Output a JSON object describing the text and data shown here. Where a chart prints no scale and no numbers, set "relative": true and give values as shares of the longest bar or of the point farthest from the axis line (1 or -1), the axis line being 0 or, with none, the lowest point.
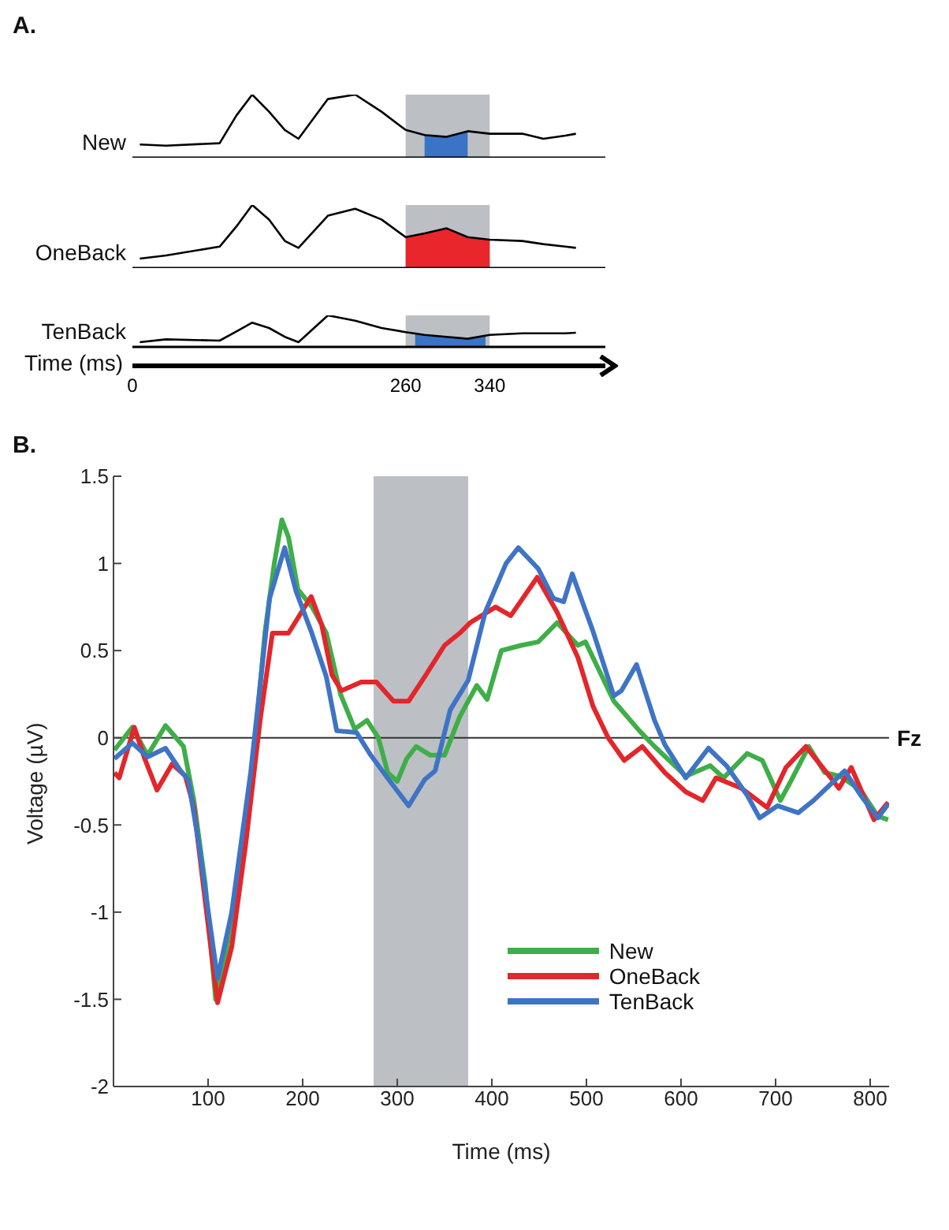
{
  "chart_data": [
    {
      "type": "line",
      "title": "A.",
      "relative": true,
      "marker": "none",
      "tick_labels": false,
      "xlim": [
        0,
        450
      ],
      "x": [
        7,
        32,
        83,
        99,
        114,
        130,
        145,
        158,
        186,
        212,
        237,
        260,
        278,
        299,
        319,
        340,
        371,
        391,
        412,
        422
      ],
      "series": [
        {
          "name": "New",
          "color": "#000000",
          "values": [
            0.21,
            0.19,
            0.23,
            0.67,
            1,
            0.73,
            0.44,
            0.3,
            0.93,
            1,
            0.73,
            0.44,
            0.36,
            0.33,
            0.42,
            0.38,
            0.38,
            0.3,
            0.35,
            0.38
          ]
        },
        {
          "type": "area",
          "color": "#3b73c6",
          "x": [
            278,
            299,
            319
          ],
          "values": [
            0.36,
            0.33,
            0.42
          ]
        }
      ],
      "bands": [
        {
          "axis": "x",
          "from": 260,
          "to": 340,
          "color": "#bcc0c4"
        }
      ]
    },
    {
      "type": "line",
      "relative": true,
      "marker": "none",
      "tick_labels": false,
      "xlim": [
        0,
        450
      ],
      "x": [
        7,
        32,
        83,
        99,
        114,
        130,
        145,
        158,
        186,
        212,
        237,
        260,
        278,
        299,
        319,
        340,
        371,
        391,
        412,
        422
      ],
      "series": [
        {
          "name": "OneBack",
          "color": "#000000",
          "values": [
            0.15,
            0.2,
            0.34,
            0.66,
            1,
            0.77,
            0.43,
            0.32,
            0.83,
            0.94,
            0.77,
            0.49,
            0.55,
            0.63,
            0.49,
            0.45,
            0.43,
            0.38,
            0.34,
            0.32
          ]
        },
        {
          "type": "area",
          "color": "#e8262b",
          "x": [
            260,
            278,
            299,
            319,
            340
          ],
          "values": [
            0.49,
            0.55,
            0.63,
            0.49,
            0.45
          ]
        }
      ],
      "bands": [
        {
          "axis": "x",
          "from": 260,
          "to": 340,
          "color": "#bcc0c4"
        }
      ]
    },
    {
      "type": "line",
      "relative": true,
      "marker": "none",
      "tick_labels": "x",
      "xlabel": "Time (ms)",
      "xlim": [
        0,
        450
      ],
      "xticks": [
        0,
        260,
        340
      ],
      "x": [
        7,
        32,
        83,
        99,
        114,
        130,
        145,
        158,
        186,
        212,
        237,
        260,
        278,
        299,
        319,
        340,
        371,
        391,
        412,
        422
      ],
      "series": [
        {
          "name": "TenBack",
          "color": "#000000",
          "values": [
            0.15,
            0.24,
            0.2,
            0.49,
            0.77,
            0.6,
            0.32,
            0.15,
            1,
            0.83,
            0.6,
            0.47,
            0.38,
            0.32,
            0.26,
            0.38,
            0.43,
            0.43,
            0.43,
            0.45
          ]
        },
        {
          "type": "area",
          "color": "#3b73c6",
          "x": [
            269,
            278,
            299,
            319,
            336
          ],
          "values": [
            0.42,
            0.38,
            0.32,
            0.26,
            0.36
          ]
        }
      ],
      "bands": [
        {
          "axis": "x",
          "from": 260,
          "to": 340,
          "color": "#bcc0c4"
        }
      ]
    },
    {
      "type": "line",
      "title": "B.",
      "xlabel": "Time (ms)",
      "ylabel": "Voltage (µV)",
      "marker": "none",
      "legend": "bottom right",
      "xlim": [
        0,
        820
      ],
      "xticks": [
        100,
        200,
        300,
        400,
        500,
        600,
        700,
        800
      ],
      "ylim": [
        -2,
        1.5
      ],
      "yticks": [
        -2,
        -1.5,
        -1,
        -0.5,
        0,
        0.5,
        1,
        1.5
      ],
      "bands": [
        {
          "axis": "x",
          "from": 275,
          "to": 375,
          "color": "#bcc0c4"
        }
      ],
      "ref_lines": [
        {
          "axis": "y",
          "value": 0,
          "label": "Fz",
          "color": "#333333"
        }
      ],
      "series": [
        {
          "name": "New",
          "color": "#3fae49",
          "x": [
            1,
            20,
            36,
            55,
            74,
            85,
            97,
            108,
            120,
            140,
            150,
            160,
            170,
            178,
            185,
            195,
            210,
            225,
            240,
            255,
            268,
            280,
            290,
            300,
            310,
            320,
            335,
            350,
            366,
            384,
            395,
            410,
            431,
            449,
            469,
            491,
            499,
            529,
            556,
            572,
            605,
            631,
            645,
            670,
            686,
            705,
            716,
            735,
            752,
            768,
            790,
            808,
            819
          ],
          "values": [
            -0.07,
            0.06,
            -0.1,
            0.07,
            -0.05,
            -0.36,
            -0.84,
            -1.5,
            -1.2,
            -0.5,
            0,
            0.6,
            1.0,
            1.25,
            1.15,
            0.85,
            0.75,
            0.6,
            0.25,
            0.05,
            0.1,
            0,
            -0.2,
            -0.25,
            -0.12,
            -0.05,
            -0.1,
            -0.1,
            0.12,
            0.3,
            0.22,
            0.5,
            0.53,
            0.55,
            0.66,
            0.53,
            0.55,
            0.21,
            0.04,
            -0.05,
            -0.22,
            -0.16,
            -0.23,
            -0.09,
            -0.13,
            -0.36,
            -0.25,
            -0.05,
            -0.2,
            -0.22,
            -0.3,
            -0.45,
            -0.47
          ]
        },
        {
          "name": "OneBack",
          "color": "#e3262b",
          "x": [
            1,
            6,
            22,
            33,
            46,
            62,
            76,
            85,
            110,
            125,
            140,
            155,
            168,
            185,
            209,
            220,
            231,
            241,
            262,
            278,
            296,
            312,
            329,
            350,
            366,
            377,
            404,
            420,
            448,
            469,
            491,
            507,
            523,
            540,
            559,
            583,
            605,
            623,
            637,
            664,
            691,
            711,
            732,
            754,
            767,
            780,
            804,
            819
          ],
          "values": [
            -0.2,
            -0.23,
            0.06,
            -0.12,
            -0.3,
            -0.15,
            -0.22,
            -0.4,
            -1.52,
            -1.2,
            -0.6,
            0.1,
            0.6,
            0.6,
            0.81,
            0.65,
            0.36,
            0.27,
            0.32,
            0.32,
            0.21,
            0.21,
            0.35,
            0.53,
            0.6,
            0.66,
            0.75,
            0.7,
            0.92,
            0.72,
            0.46,
            0.18,
            0,
            -0.13,
            -0.05,
            -0.2,
            -0.31,
            -0.36,
            -0.23,
            -0.29,
            -0.4,
            -0.17,
            -0.05,
            -0.2,
            -0.29,
            -0.17,
            -0.47,
            -0.37
          ]
        },
        {
          "name": "TenBack",
          "color": "#3f74c5",
          "x": [
            1,
            20,
            36,
            55,
            71,
            79,
            90,
            110,
            125,
            145,
            155,
            165,
            181,
            193,
            209,
            225,
            236,
            257,
            272,
            291,
            312,
            329,
            340,
            356,
            375,
            393,
            415,
            428,
            449,
            465,
            476,
            485,
            507,
            529,
            537,
            553,
            572,
            583,
            605,
            629,
            648,
            670,
            683,
            702,
            724,
            740,
            773,
            790,
            808,
            819
          ],
          "values": [
            -0.12,
            -0.03,
            -0.11,
            -0.06,
            -0.19,
            -0.24,
            -0.6,
            -1.38,
            -1.0,
            -0.2,
            0.3,
            0.8,
            1.09,
            0.84,
            0.61,
            0.35,
            0.04,
            0.03,
            -0.1,
            -0.24,
            -0.39,
            -0.24,
            -0.19,
            0.16,
            0.33,
            0.72,
            1.0,
            1.09,
            0.97,
            0.8,
            0.78,
            0.94,
            0.61,
            0.24,
            0.27,
            0.42,
            0.1,
            -0.04,
            -0.23,
            -0.06,
            -0.16,
            -0.33,
            -0.46,
            -0.39,
            -0.43,
            -0.36,
            -0.19,
            -0.33,
            -0.46,
            -0.38
          ]
        }
      ]
    }
  ]
}
